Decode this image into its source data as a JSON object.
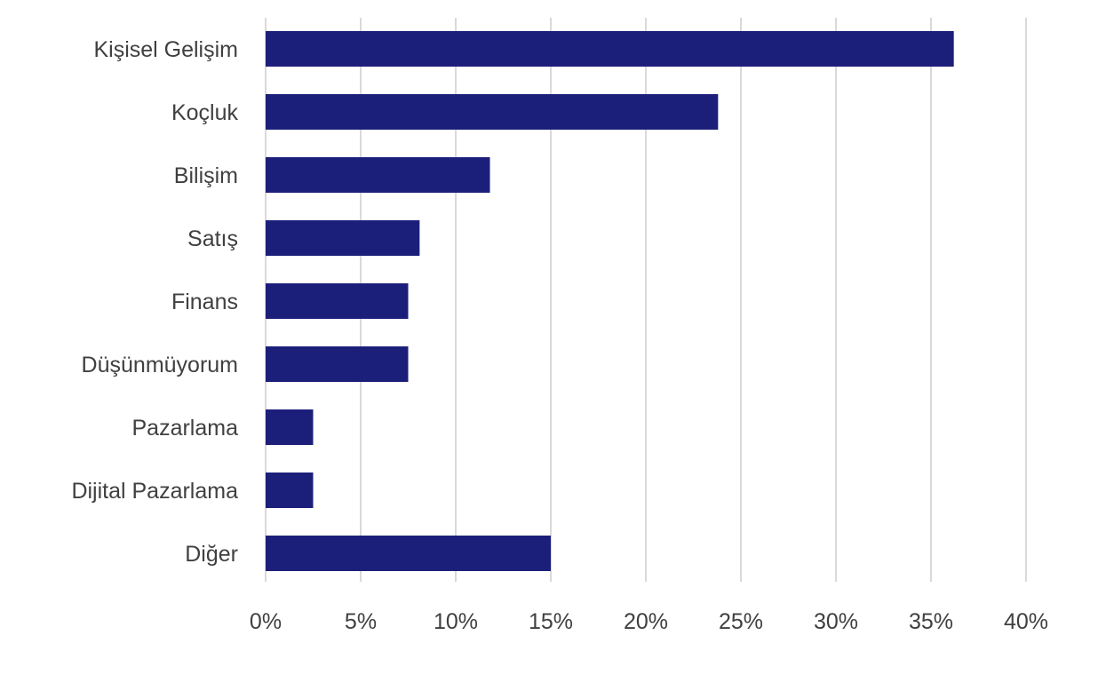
{
  "chart_data": {
    "type": "bar",
    "orientation": "horizontal",
    "categories": [
      "Kişisel Gelişim",
      "Koçluk",
      "Bilişim",
      "Satış",
      "Finans",
      "Düşünmüyorum",
      "Pazarlama",
      "Dijital Pazarlama",
      "Diğer"
    ],
    "values": [
      36.2,
      23.8,
      11.8,
      8.1,
      7.5,
      7.5,
      2.5,
      2.5,
      15.0
    ],
    "xlim": [
      0,
      40
    ],
    "x_ticks": [
      0,
      5,
      10,
      15,
      20,
      25,
      30,
      35,
      40
    ],
    "x_tick_labels": [
      "0%",
      "5%",
      "10%",
      "15%",
      "20%",
      "25%",
      "30%",
      "35%",
      "40%"
    ],
    "grid": true,
    "bar_color": "#1c1f7a",
    "grid_color": "#d9d9d9"
  }
}
